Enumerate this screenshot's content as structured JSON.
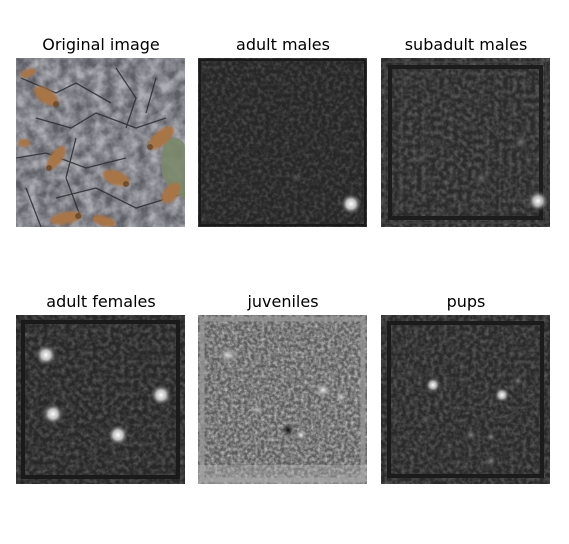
{
  "panels": [
    {
      "title": "Original image",
      "kind": "photo"
    },
    {
      "title": "adult males",
      "kind": "heatmap"
    },
    {
      "title": "subadult males",
      "kind": "heatmap"
    },
    {
      "title": "adult females",
      "kind": "heatmap"
    },
    {
      "title": "juveniles",
      "kind": "heatmap"
    },
    {
      "title": "pups",
      "kind": "heatmap"
    }
  ],
  "colors": {
    "heatmap_background": "#2a2a2a",
    "heatmap_hotspot": "#ffffff",
    "photo_rock": "#6b6b73",
    "photo_sealion": "#a8744a",
    "photo_water": "#7d8a6a"
  }
}
